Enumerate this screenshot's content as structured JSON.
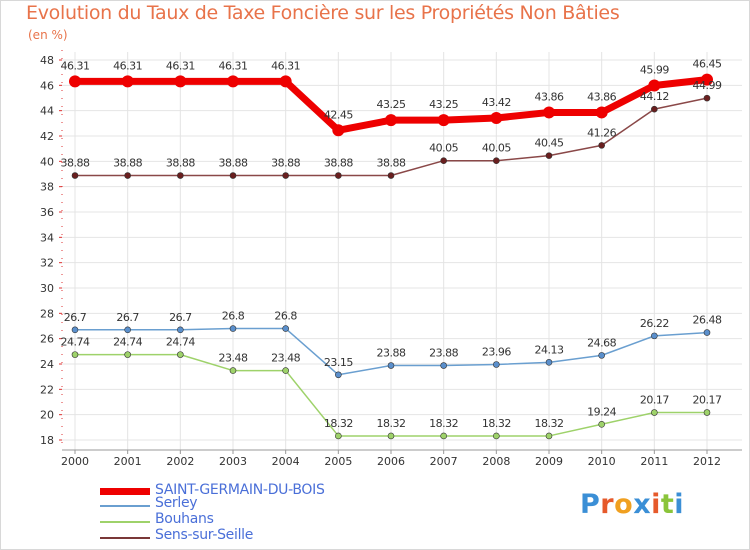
{
  "header": {
    "title": "Evolution du Taux de Taxe Foncière sur les Propriétés Non Bâties",
    "unit": "(en %)"
  },
  "logo": {
    "text": "Proxiti",
    "colors": [
      "#3b8fd6",
      "#e65a2b",
      "#f0a020",
      "#3b8fd6",
      "#e65a2b",
      "#8ac43a",
      "#3b8fd6"
    ]
  },
  "legend": {
    "items": [
      {
        "label": "SAINT-GERMAIN-DU-BOIS",
        "color": "#ee0000",
        "width": 7
      },
      {
        "label": "Serley",
        "color": "#6a9fd0",
        "width": 2
      },
      {
        "label": "Bouhans",
        "color": "#9ed26a",
        "width": 2
      },
      {
        "label": "Sens-sur-Seille",
        "color": "#7a3838",
        "width": 2
      }
    ]
  },
  "chart_data": {
    "type": "line",
    "x": [
      "2000",
      "2001",
      "2002",
      "2003",
      "2004",
      "2005",
      "2006",
      "2007",
      "2008",
      "2009",
      "2010",
      "2011",
      "2012"
    ],
    "ylim": [
      18,
      48
    ],
    "yticks": [
      18,
      20,
      22,
      24,
      26,
      28,
      30,
      32,
      34,
      36,
      38,
      40,
      42,
      44,
      46,
      48
    ],
    "grid": true,
    "legend_placement": "bottom-left",
    "series": [
      {
        "name": "SAINT-GERMAIN-DU-BOIS",
        "color": "#ee0000",
        "marker_fill": "#ee0000",
        "line_width": 7,
        "marker_r": 6,
        "values": [
          46.31,
          46.31,
          46.31,
          46.31,
          46.31,
          42.45,
          43.25,
          43.25,
          43.42,
          43.86,
          43.86,
          45.99,
          46.45
        ],
        "labels": [
          "46.31",
          "46.31",
          "46.31",
          "46.31",
          "46.31",
          "42.45",
          "43.25",
          "43.25",
          "43.42",
          "43.86",
          "43.86",
          "45.99",
          "46.45"
        ]
      },
      {
        "name": "Serley",
        "color": "#6a9fd0",
        "marker_fill": "#5a8fcc",
        "line_width": 1.5,
        "marker_r": 3,
        "values": [
          26.7,
          26.7,
          26.7,
          26.8,
          26.8,
          23.15,
          23.88,
          23.88,
          23.96,
          24.13,
          24.68,
          26.22,
          26.48
        ],
        "labels": [
          "26.7",
          "26.7",
          "26.7",
          "26.8",
          "26.8",
          "23.15",
          "23.88",
          "23.88",
          "23.96",
          "24.13",
          "24.68",
          "26.22",
          "26.48"
        ]
      },
      {
        "name": "Bouhans",
        "color": "#9ed26a",
        "marker_fill": "#9ed26a",
        "line_width": 1.5,
        "marker_r": 3,
        "values": [
          24.74,
          24.74,
          24.74,
          23.48,
          23.48,
          18.32,
          18.32,
          18.32,
          18.32,
          18.32,
          19.24,
          20.17,
          20.17
        ],
        "labels": [
          "24.74",
          "24.74",
          "24.74",
          "23.48",
          "23.48",
          "18.32",
          "18.32",
          "18.32",
          "18.32",
          "18.32",
          "19.24",
          "20.17",
          "20.17"
        ]
      },
      {
        "name": "Sens-sur-Seille",
        "color": "#8a4848",
        "marker_fill": "#6a1f1f",
        "line_width": 1.5,
        "marker_r": 3,
        "values": [
          38.88,
          38.88,
          38.88,
          38.88,
          38.88,
          38.88,
          38.88,
          40.05,
          40.05,
          40.45,
          41.26,
          44.12,
          44.99
        ],
        "labels": [
          "38.88",
          "38.88",
          "38.88",
          "38.88",
          "38.88",
          "38.88",
          "38.88",
          "40.05",
          "40.05",
          "40.45",
          "41.26",
          "44.12",
          "44.99"
        ]
      }
    ]
  }
}
